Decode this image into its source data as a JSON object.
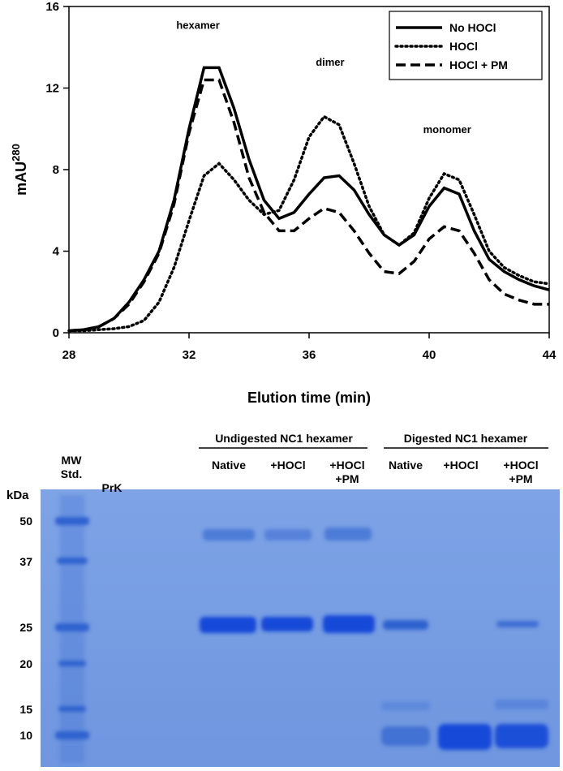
{
  "chart_data": {
    "type": "line",
    "x_label": "Elution time (min)",
    "y_label": "mAU",
    "y_label_sup": "280",
    "xlim": [
      28,
      44
    ],
    "xticks": [
      28,
      32,
      36,
      40,
      44
    ],
    "ylim": [
      0,
      16
    ],
    "yticks": [
      0,
      4,
      8,
      12,
      16
    ],
    "legend": "upper right",
    "x": [
      28,
      28.5,
      29,
      29.5,
      30,
      30.5,
      31,
      31.5,
      32,
      32.5,
      33,
      33.5,
      34,
      34.5,
      35,
      35.5,
      36,
      36.5,
      37,
      37.5,
      38,
      38.5,
      39,
      39.5,
      40,
      40.5,
      41,
      41.5,
      42,
      42.5,
      43,
      43.5,
      44
    ],
    "series": [
      {
        "name": "No HOCl",
        "color": "#000000",
        "dash": "solid",
        "values": [
          0.1,
          0.15,
          0.3,
          0.7,
          1.5,
          2.6,
          4.0,
          6.5,
          10.0,
          13.0,
          13.0,
          11.0,
          8.5,
          6.5,
          5.6,
          5.9,
          6.8,
          7.6,
          7.7,
          7.0,
          5.8,
          4.8,
          4.3,
          4.8,
          6.2,
          7.1,
          6.8,
          5.0,
          3.6,
          3.0,
          2.6,
          2.3,
          2.1
        ]
      },
      {
        "name": "HOCl",
        "color": "#000000",
        "dash": "dotted",
        "values": [
          0.1,
          0.1,
          0.15,
          0.2,
          0.3,
          0.6,
          1.5,
          3.2,
          5.5,
          7.7,
          8.3,
          7.5,
          6.5,
          5.8,
          6.0,
          7.5,
          9.6,
          10.6,
          10.2,
          8.3,
          6.2,
          4.8,
          4.3,
          4.9,
          6.6,
          7.8,
          7.5,
          5.8,
          4.0,
          3.2,
          2.8,
          2.5,
          2.4
        ]
      },
      {
        "name": "HOCl + PM",
        "color": "#000000",
        "dash": "dashed",
        "values": [
          0.1,
          0.15,
          0.3,
          0.7,
          1.4,
          2.5,
          3.9,
          6.3,
          9.8,
          12.4,
          12.4,
          10.3,
          7.6,
          5.9,
          5.0,
          5.0,
          5.6,
          6.1,
          5.9,
          5.0,
          3.9,
          3.0,
          2.9,
          3.5,
          4.6,
          5.2,
          5.0,
          3.9,
          2.6,
          1.9,
          1.6,
          1.4,
          1.4
        ]
      }
    ],
    "annotations": [
      {
        "text": "hexamer",
        "x": 32.3,
        "y": 14.9
      },
      {
        "text": "dimer",
        "x": 36.7,
        "y": 13.1
      },
      {
        "text": "monomer",
        "x": 40.6,
        "y": 9.8
      }
    ]
  },
  "gel": {
    "groups": [
      "Undigested NC1 hexamer",
      "Digested NC1 hexamer"
    ],
    "lanes": [
      [
        "MW",
        "Std."
      ],
      [
        "PrK"
      ],
      [
        "Native"
      ],
      [
        "+HOCl"
      ],
      [
        "+HOCl",
        "+PM"
      ],
      [
        "Native"
      ],
      [
        "+HOCl"
      ],
      [
        "+HOCl",
        "+PM"
      ]
    ],
    "unit": "kDa",
    "markers": [
      "50",
      "37",
      "25",
      "20",
      "15",
      "10"
    ]
  }
}
